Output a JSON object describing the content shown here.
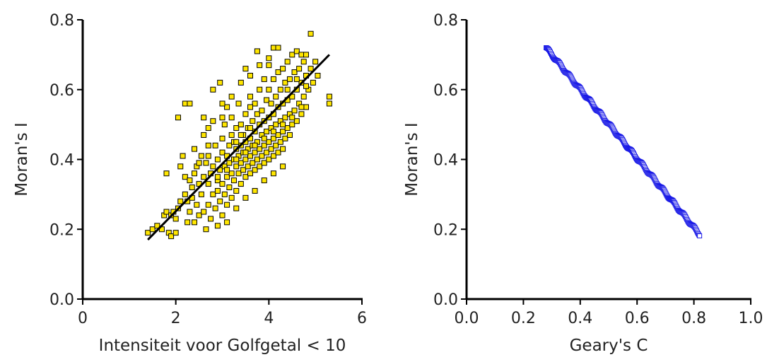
{
  "chart_data": [
    {
      "type": "scatter",
      "xlabel": "Intensiteit voor Golfgetal < 10",
      "ylabel": "Moran's I",
      "xlim": [
        0,
        6
      ],
      "ylim": [
        0,
        0.8
      ],
      "xticks": [
        "0",
        "2",
        "4",
        "6"
      ],
      "yticks": [
        "0.0",
        "0.2",
        "0.4",
        "0.6",
        "0.8"
      ],
      "grid": false,
      "legend": "none",
      "marker_color": "#ffe600",
      "marker_edge": "#000000",
      "trend_line": {
        "x": [
          1.4,
          5.3
        ],
        "y": [
          0.17,
          0.7
        ],
        "color": "#000000"
      },
      "points": [
        [
          1.4,
          0.19
        ],
        [
          1.5,
          0.2
        ],
        [
          1.6,
          0.21
        ],
        [
          1.7,
          0.2
        ],
        [
          1.75,
          0.24
        ],
        [
          1.8,
          0.25
        ],
        [
          1.8,
          0.36
        ],
        [
          1.85,
          0.19
        ],
        [
          1.9,
          0.24
        ],
        [
          1.9,
          0.18
        ],
        [
          1.95,
          0.25
        ],
        [
          2.0,
          0.23
        ],
        [
          2.0,
          0.19
        ],
        [
          2.05,
          0.26
        ],
        [
          2.05,
          0.52
        ],
        [
          2.1,
          0.28
        ],
        [
          2.1,
          0.38
        ],
        [
          2.15,
          0.41
        ],
        [
          2.2,
          0.56
        ],
        [
          2.2,
          0.35
        ],
        [
          2.25,
          0.28
        ],
        [
          2.25,
          0.22
        ],
        [
          2.3,
          0.56
        ],
        [
          2.3,
          0.25
        ],
        [
          2.35,
          0.32
        ],
        [
          2.35,
          0.29
        ],
        [
          2.4,
          0.36
        ],
        [
          2.4,
          0.22
        ],
        [
          2.45,
          0.38
        ],
        [
          2.45,
          0.27
        ],
        [
          2.5,
          0.33
        ],
        [
          2.5,
          0.24
        ],
        [
          2.55,
          0.3
        ],
        [
          2.55,
          0.41
        ],
        [
          2.6,
          0.25
        ],
        [
          2.6,
          0.35
        ],
        [
          2.6,
          0.52
        ],
        [
          2.65,
          0.39
        ],
        [
          2.65,
          0.2
        ],
        [
          2.7,
          0.33
        ],
        [
          2.7,
          0.27
        ],
        [
          2.7,
          0.41
        ],
        [
          2.75,
          0.36
        ],
        [
          2.75,
          0.23
        ],
        [
          2.8,
          0.3
        ],
        [
          2.8,
          0.38
        ],
        [
          2.8,
          0.6
        ],
        [
          2.85,
          0.26
        ],
        [
          2.85,
          0.44
        ],
        [
          2.9,
          0.34
        ],
        [
          2.9,
          0.31
        ],
        [
          2.9,
          0.4
        ],
        [
          2.95,
          0.37
        ],
        [
          2.95,
          0.28
        ],
        [
          2.95,
          0.62
        ],
        [
          3.0,
          0.33
        ],
        [
          3.0,
          0.42
        ],
        [
          3.0,
          0.46
        ],
        [
          3.0,
          0.24
        ],
        [
          3.05,
          0.38
        ],
        [
          3.05,
          0.3
        ],
        [
          3.05,
          0.5
        ],
        [
          3.1,
          0.35
        ],
        [
          3.1,
          0.41
        ],
        [
          3.1,
          0.27
        ],
        [
          3.1,
          0.55
        ],
        [
          3.15,
          0.39
        ],
        [
          3.15,
          0.44
        ],
        [
          3.15,
          0.32
        ],
        [
          3.2,
          0.36
        ],
        [
          3.2,
          0.47
        ],
        [
          3.2,
          0.29
        ],
        [
          3.2,
          0.52
        ],
        [
          3.25,
          0.4
        ],
        [
          3.25,
          0.34
        ],
        [
          3.25,
          0.45
        ],
        [
          3.3,
          0.38
        ],
        [
          3.3,
          0.43
        ],
        [
          3.3,
          0.31
        ],
        [
          3.3,
          0.49
        ],
        [
          3.35,
          0.41
        ],
        [
          3.35,
          0.36
        ],
        [
          3.35,
          0.56
        ],
        [
          3.4,
          0.39
        ],
        [
          3.4,
          0.44
        ],
        [
          3.4,
          0.33
        ],
        [
          3.4,
          0.5
        ],
        [
          3.45,
          0.42
        ],
        [
          3.45,
          0.37
        ],
        [
          3.45,
          0.47
        ],
        [
          3.5,
          0.4
        ],
        [
          3.5,
          0.45
        ],
        [
          3.5,
          0.35
        ],
        [
          3.5,
          0.53
        ],
        [
          3.5,
          0.66
        ],
        [
          3.55,
          0.43
        ],
        [
          3.55,
          0.38
        ],
        [
          3.55,
          0.49
        ],
        [
          3.6,
          0.41
        ],
        [
          3.6,
          0.46
        ],
        [
          3.6,
          0.36
        ],
        [
          3.6,
          0.58
        ],
        [
          3.65,
          0.44
        ],
        [
          3.65,
          0.39
        ],
        [
          3.65,
          0.51
        ],
        [
          3.7,
          0.42
        ],
        [
          3.7,
          0.48
        ],
        [
          3.7,
          0.37
        ],
        [
          3.7,
          0.56
        ],
        [
          3.75,
          0.45
        ],
        [
          3.75,
          0.4
        ],
        [
          3.75,
          0.53
        ],
        [
          3.75,
          0.71
        ],
        [
          3.8,
          0.43
        ],
        [
          3.8,
          0.5
        ],
        [
          3.8,
          0.38
        ],
        [
          3.8,
          0.6
        ],
        [
          3.85,
          0.47
        ],
        [
          3.85,
          0.41
        ],
        [
          3.85,
          0.54
        ],
        [
          3.9,
          0.44
        ],
        [
          3.9,
          0.51
        ],
        [
          3.9,
          0.39
        ],
        [
          3.9,
          0.63
        ],
        [
          3.95,
          0.48
        ],
        [
          3.95,
          0.42
        ],
        [
          3.95,
          0.57
        ],
        [
          4.0,
          0.45
        ],
        [
          4.0,
          0.52
        ],
        [
          4.0,
          0.4
        ],
        [
          4.0,
          0.6
        ],
        [
          4.0,
          0.67
        ],
        [
          4.05,
          0.49
        ],
        [
          4.05,
          0.43
        ],
        [
          4.05,
          0.56
        ],
        [
          4.1,
          0.46
        ],
        [
          4.1,
          0.53
        ],
        [
          4.1,
          0.41
        ],
        [
          4.1,
          0.63
        ],
        [
          4.1,
          0.72
        ],
        [
          4.15,
          0.5
        ],
        [
          4.15,
          0.44
        ],
        [
          4.15,
          0.58
        ],
        [
          4.2,
          0.47
        ],
        [
          4.2,
          0.55
        ],
        [
          4.2,
          0.42
        ],
        [
          4.2,
          0.65
        ],
        [
          4.25,
          0.51
        ],
        [
          4.25,
          0.45
        ],
        [
          4.25,
          0.6
        ],
        [
          4.3,
          0.48
        ],
        [
          4.3,
          0.56
        ],
        [
          4.3,
          0.43
        ],
        [
          4.3,
          0.66
        ],
        [
          4.35,
          0.52
        ],
        [
          4.35,
          0.46
        ],
        [
          4.35,
          0.62
        ],
        [
          4.4,
          0.49
        ],
        [
          4.4,
          0.57
        ],
        [
          4.4,
          0.68
        ],
        [
          4.45,
          0.53
        ],
        [
          4.45,
          0.47
        ],
        [
          4.45,
          0.63
        ],
        [
          4.5,
          0.5
        ],
        [
          4.5,
          0.58
        ],
        [
          4.5,
          0.7
        ],
        [
          4.55,
          0.54
        ],
        [
          4.55,
          0.65
        ],
        [
          4.6,
          0.51
        ],
        [
          4.6,
          0.6
        ],
        [
          4.6,
          0.71
        ],
        [
          4.65,
          0.56
        ],
        [
          4.65,
          0.66
        ],
        [
          4.7,
          0.53
        ],
        [
          4.7,
          0.62
        ],
        [
          4.7,
          0.7
        ],
        [
          4.75,
          0.58
        ],
        [
          4.75,
          0.68
        ],
        [
          4.8,
          0.55
        ],
        [
          4.8,
          0.64
        ],
        [
          4.8,
          0.7
        ],
        [
          4.85,
          0.6
        ],
        [
          4.9,
          0.66
        ],
        [
          4.9,
          0.76
        ],
        [
          4.95,
          0.62
        ],
        [
          5.0,
          0.68
        ],
        [
          5.05,
          0.64
        ],
        [
          5.3,
          0.58
        ],
        [
          5.3,
          0.56
        ],
        [
          2.7,
          0.44
        ],
        [
          2.9,
          0.21
        ],
        [
          3.1,
          0.22
        ],
        [
          3.3,
          0.26
        ],
        [
          3.5,
          0.29
        ],
        [
          3.7,
          0.31
        ],
        [
          3.9,
          0.34
        ],
        [
          4.1,
          0.36
        ],
        [
          4.3,
          0.38
        ],
        [
          2.4,
          0.43
        ],
        [
          2.6,
          0.47
        ],
        [
          3.0,
          0.52
        ],
        [
          3.2,
          0.58
        ],
        [
          3.4,
          0.62
        ],
        [
          3.6,
          0.55
        ],
        [
          2.2,
          0.3
        ],
        [
          2.3,
          0.34
        ],
        [
          2.5,
          0.39
        ],
        [
          2.7,
          0.49
        ],
        [
          2.8,
          0.51
        ],
        [
          3.0,
          0.56
        ],
        [
          3.6,
          0.64
        ],
        [
          3.8,
          0.67
        ],
        [
          4.0,
          0.69
        ],
        [
          4.2,
          0.72
        ],
        [
          4.4,
          0.6
        ],
        [
          4.6,
          0.63
        ],
        [
          4.8,
          0.61
        ],
        [
          3.3,
          0.45
        ],
        [
          3.4,
          0.47
        ],
        [
          3.6,
          0.49
        ],
        [
          3.7,
          0.44
        ],
        [
          3.9,
          0.46
        ],
        [
          4.1,
          0.48
        ],
        [
          4.3,
          0.5
        ],
        [
          4.5,
          0.52
        ],
        [
          4.7,
          0.55
        ],
        [
          2.9,
          0.35
        ],
        [
          3.1,
          0.37
        ],
        [
          3.3,
          0.4
        ],
        [
          3.5,
          0.42
        ]
      ]
    },
    {
      "type": "scatter",
      "xlabel": "Geary's C",
      "ylabel": "Moran's I",
      "xlim": [
        0,
        1
      ],
      "ylim": [
        0,
        0.8
      ],
      "xticks": [
        "0.0",
        "0.2",
        "0.4",
        "0.6",
        "0.8",
        "1.0"
      ],
      "yticks": [
        "0.0",
        "0.2",
        "0.4",
        "0.6",
        "0.8"
      ],
      "grid": false,
      "legend": "none",
      "marker_color": "#ffffff",
      "marker_edge": "#1a1ae6",
      "relation": {
        "x_from": 0.28,
        "x_to": 0.82,
        "y_at_from": 0.72,
        "y_at_to": 0.185
      },
      "point_count": 220
    }
  ]
}
